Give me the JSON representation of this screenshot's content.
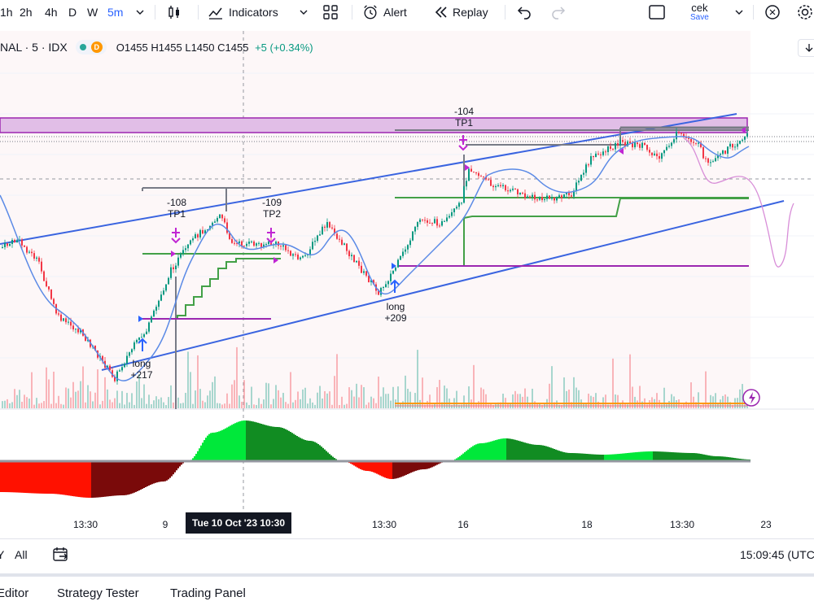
{
  "toolbar": {
    "intervals": [
      "1h",
      "2h",
      "4h",
      "D",
      "W",
      "5m"
    ],
    "active_interval": "5m",
    "indicators_label": "Indicators",
    "alert_label": "Alert",
    "replay_label": "Replay",
    "user_name": "cek",
    "save_label": "Save",
    "icons": [
      "candlestick-type-icon",
      "indicators-icon",
      "templates-icon",
      "alert-icon",
      "replay-icon",
      "undo-icon",
      "redo-icon",
      "layout-icon",
      "chevron-down-icon",
      "quick-search-icon",
      "settings-icon"
    ]
  },
  "legend": {
    "symbol": "NAL · 5 · IDX",
    "badge": "D",
    "open": "O1455",
    "high": "H1455",
    "low": "L1450",
    "close": "C1455",
    "change": "+5 (+0.34%)"
  },
  "annotations": {
    "tp1_top_value": "-104",
    "tp1_top_label": "TP1",
    "tp1_left_value": "-108",
    "tp1_left_label": "TP1",
    "tp2_value": "-109",
    "tp2_label": "TP2",
    "long_mid_label": "long",
    "long_mid_value": "+209",
    "long_left_label": "long",
    "long_left_value": "+217"
  },
  "time_axis": {
    "ticks": [
      "13:30",
      "9",
      "13:30",
      "16",
      "18",
      "13:30",
      "23"
    ],
    "crosshair_label": "Tue 10 Oct '23   10:30"
  },
  "range_bar": {
    "items": [
      "Y",
      "All"
    ],
    "current_time": "15:09:45 (UTC"
  },
  "panel_tabs": [
    "Editor",
    "Strategy Tester",
    "Trading Panel"
  ],
  "colors": {
    "up": "#089981",
    "down": "#f23645",
    "channel": "#3a64e0",
    "tp_zone": "#e1bee7",
    "tp_zone_border": "#9c27b0",
    "signal": "#9c27b0",
    "osc_green": "#00c853",
    "osc_red": "#ff1100",
    "accent": "#2962ff"
  }
}
